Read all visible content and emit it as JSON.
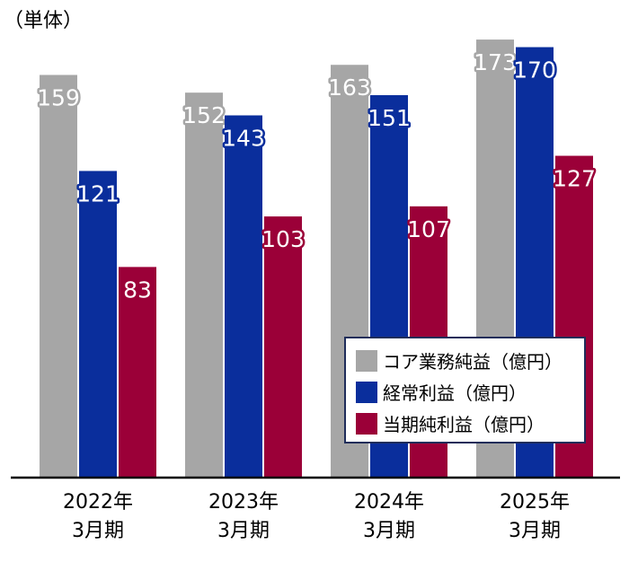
{
  "chart_data": {
    "type": "bar",
    "unit_label": "（単体）",
    "categories": [
      {
        "line1": "2022年",
        "line2": "3月期"
      },
      {
        "line1": "2023年",
        "line2": "3月期"
      },
      {
        "line1": "2024年",
        "line2": "3月期"
      },
      {
        "line1": "2025年",
        "line2": "3月期"
      }
    ],
    "series": [
      {
        "name": "コア業務純益（億円）",
        "color": "#a6a6a6",
        "values": [
          159,
          152,
          163,
          173
        ]
      },
      {
        "name": "経常利益（億円）",
        "color": "#0a2e9c",
        "values": [
          121,
          143,
          151,
          170
        ]
      },
      {
        "name": "当期純利益（億円）",
        "color": "#9b0038",
        "values": [
          83,
          103,
          107,
          127
        ]
      }
    ],
    "ylim": [
      0,
      178
    ],
    "grid": false,
    "legend_position": "bottom-right"
  }
}
